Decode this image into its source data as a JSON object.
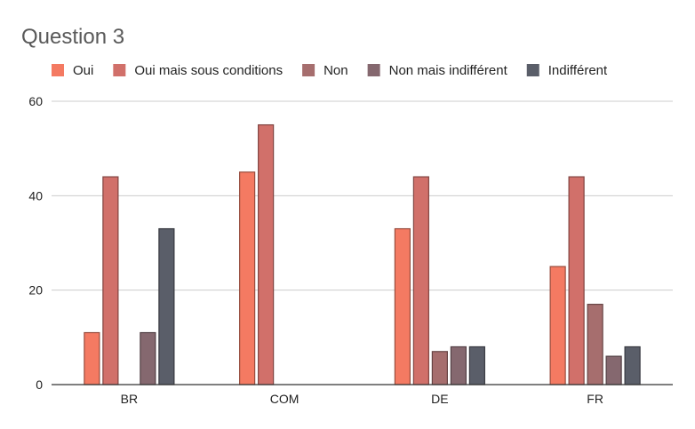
{
  "chart_data": {
    "type": "bar",
    "title": "Question 3",
    "xlabel": "",
    "ylabel": "",
    "categories": [
      "BR",
      "COM",
      "DE",
      "FR"
    ],
    "ylim": [
      0,
      60
    ],
    "yticks": [
      0,
      20,
      40,
      60
    ],
    "grid": true,
    "legend_position": "top",
    "series": [
      {
        "name": "Oui",
        "color": "#f47a62",
        "values": [
          11,
          45,
          33,
          25
        ]
      },
      {
        "name": "Oui mais sous conditions",
        "color": "#d1706a",
        "values": [
          44,
          55,
          44,
          44
        ]
      },
      {
        "name": "Non",
        "color": "#a66e6e",
        "values": [
          0,
          0,
          7,
          17
        ]
      },
      {
        "name": "Non mais indifférent",
        "color": "#85686f",
        "values": [
          11,
          0,
          8,
          6
        ]
      },
      {
        "name": "Indifférent",
        "color": "#5a5e69",
        "values": [
          33,
          0,
          8,
          8
        ]
      }
    ]
  }
}
